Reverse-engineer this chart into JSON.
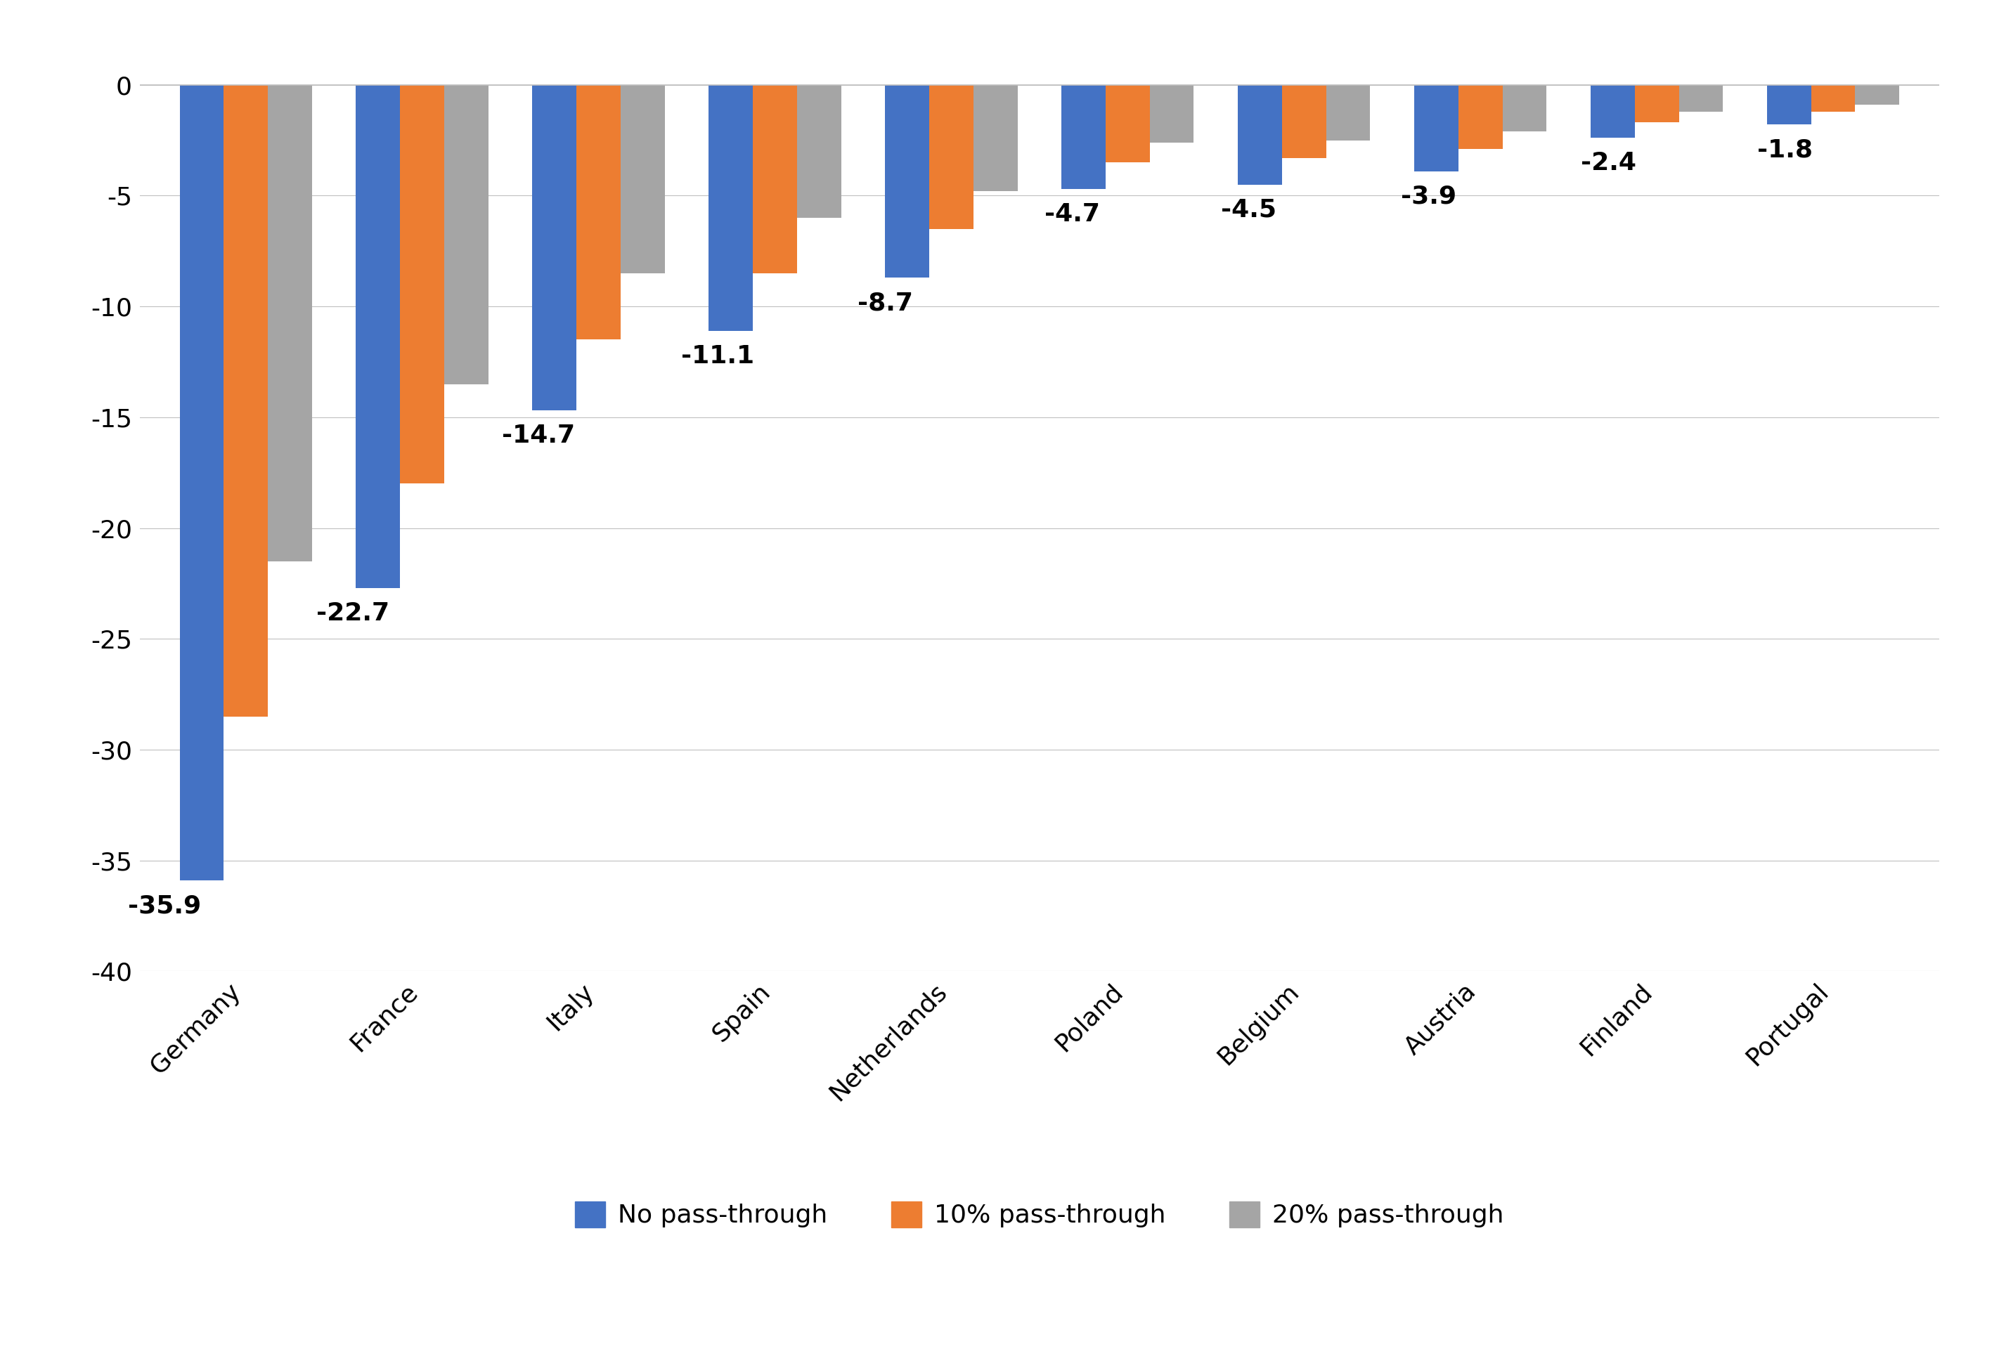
{
  "categories": [
    "Germany",
    "France",
    "Italy",
    "Spain",
    "Netherlands",
    "Poland",
    "Belgium",
    "Austria",
    "Finland",
    "Portugal"
  ],
  "no_passthrough": [
    -35.9,
    -22.7,
    -14.7,
    -11.1,
    -8.7,
    -4.7,
    -4.5,
    -3.9,
    -2.4,
    -1.8
  ],
  "passthrough_10": [
    -28.5,
    -18.0,
    -11.5,
    -8.5,
    -6.5,
    -3.5,
    -3.3,
    -2.9,
    -1.7,
    -1.2
  ],
  "passthrough_20": [
    -21.5,
    -13.5,
    -8.5,
    -6.0,
    -4.8,
    -2.6,
    -2.5,
    -2.1,
    -1.2,
    -0.9
  ],
  "labels": [
    "-35.9",
    "-22.7",
    "-14.7",
    "-11.1",
    "-8.7",
    "-4.7",
    "-4.5",
    "-3.9",
    "-2.4",
    "-1.8"
  ],
  "color_blue": "#4472C4",
  "color_orange": "#ED7D31",
  "color_gray": "#A5A5A5",
  "ylim": [
    -40,
    2
  ],
  "yticks": [
    0,
    -5,
    -10,
    -15,
    -20,
    -25,
    -30,
    -35,
    -40
  ],
  "bar_width": 0.25,
  "legend_labels": [
    "No pass-through",
    "10% pass-through",
    "20% pass-through"
  ],
  "background_color": "#ffffff",
  "grid_color": "#C0C0C0",
  "font_size_ticks": 26,
  "font_size_labels": 26,
  "font_size_legend": 26,
  "font_size_annotations": 26
}
